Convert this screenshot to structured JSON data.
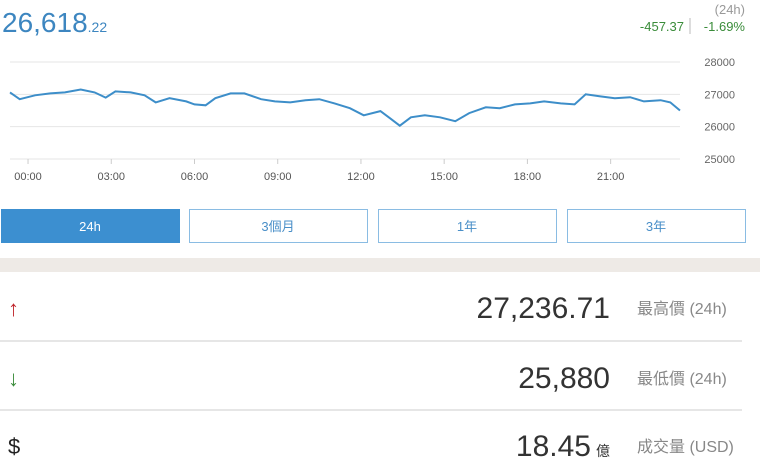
{
  "header": {
    "price": "26,618",
    "price_decimals": ".22",
    "period": "(24h)",
    "change": "-457.37",
    "change_percent": "-1.69%"
  },
  "chart_data": {
    "type": "line",
    "color": "#3d8ec9",
    "x": [
      -0.65,
      -0.3,
      0.25,
      0.8,
      1.33,
      1.9,
      2.4,
      2.8,
      3.15,
      3.7,
      4.2,
      4.6,
      5.1,
      5.7,
      6.0,
      6.4,
      6.75,
      7.3,
      7.8,
      8.4,
      8.9,
      9.45,
      10.0,
      10.5,
      11.05,
      11.6,
      12.1,
      12.7,
      13.05,
      13.4,
      13.8,
      14.3,
      14.85,
      15.4,
      15.9,
      16.5,
      17.0,
      17.55,
      18.1,
      18.6,
      19.2,
      19.7,
      20.1,
      20.6,
      21.15,
      21.7,
      22.2,
      22.8,
      23.15,
      23.5
    ],
    "values": [
      27060,
      26850,
      26970,
      27030,
      27060,
      27150,
      27060,
      26900,
      27090,
      27060,
      26970,
      26750,
      26880,
      26780,
      26690,
      26660,
      26880,
      27030,
      27030,
      26850,
      26780,
      26750,
      26820,
      26850,
      26720,
      26570,
      26350,
      26480,
      26260,
      26030,
      26290,
      26350,
      26290,
      26170,
      26420,
      26600,
      26570,
      26690,
      26720,
      26780,
      26720,
      26690,
      27000,
      26940,
      26880,
      26910,
      26780,
      26820,
      26750,
      26500
    ],
    "xlim": [
      -0.65,
      23.5
    ],
    "xticks": [
      {
        "value": 0,
        "label": "00:00"
      },
      {
        "value": 3,
        "label": "03:00"
      },
      {
        "value": 6,
        "label": "06:00"
      },
      {
        "value": 9,
        "label": "09:00"
      },
      {
        "value": 12,
        "label": "12:00"
      },
      {
        "value": 15,
        "label": "15:00"
      },
      {
        "value": 18,
        "label": "18:00"
      },
      {
        "value": 21,
        "label": "21:00"
      }
    ],
    "ylim": [
      25000,
      28000
    ],
    "yticks": [
      25000,
      26000,
      27000,
      28000
    ],
    "grid": true
  },
  "range_buttons": {
    "items": [
      "24h",
      "3個月",
      "1年",
      "3年"
    ],
    "active": 0
  },
  "stats": [
    {
      "icon": "↑",
      "value": "27,236.71",
      "label": "最高價 (24h)"
    },
    {
      "icon": "↓",
      "value": "25,880",
      "label": "最低價 (24h)"
    },
    {
      "icon": "$",
      "value": "18.45",
      "unit": "億",
      "label": "成交量 (USD)"
    }
  ]
}
